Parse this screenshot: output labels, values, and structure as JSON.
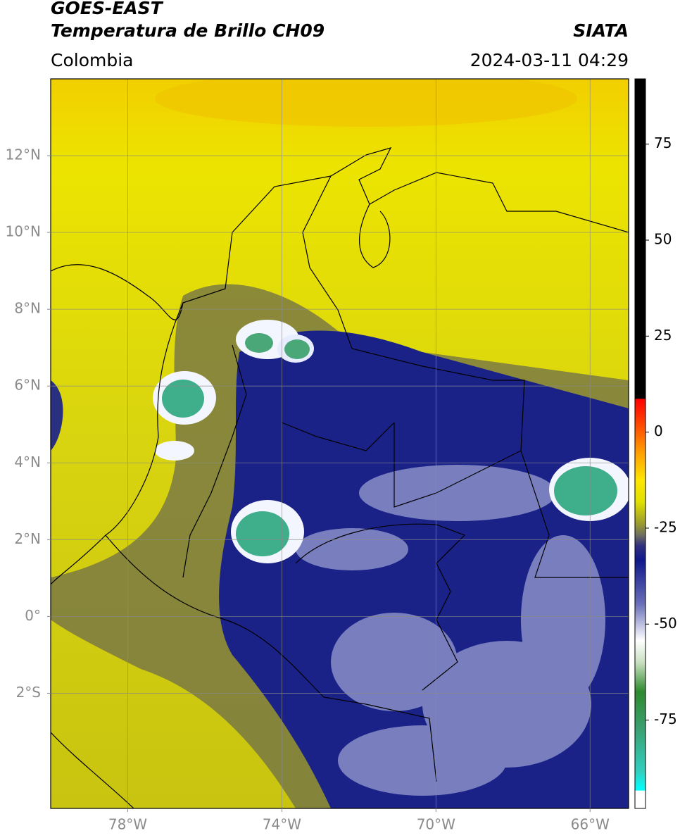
{
  "header": {
    "title": "GOES-EAST",
    "subtitle": "Temperatura de Brillo CH09",
    "source": "SIATA",
    "region": "Colombia",
    "timestamp": "2024-03-11 04:29"
  },
  "map": {
    "lon_range": [
      -80,
      -65
    ],
    "lat_range": [
      -5,
      14
    ],
    "lon_ticks": [
      {
        "value": -78,
        "label": "78°W"
      },
      {
        "value": -74,
        "label": "74°W"
      },
      {
        "value": -70,
        "label": "70°W"
      },
      {
        "value": -66,
        "label": "66°W"
      }
    ],
    "lat_ticks": [
      {
        "value": 12,
        "label": "12°N"
      },
      {
        "value": 10,
        "label": "10°N"
      },
      {
        "value": 8,
        "label": "8°N"
      },
      {
        "value": 6,
        "label": "6°N"
      },
      {
        "value": 4,
        "label": "4°N"
      },
      {
        "value": 2,
        "label": "2°N"
      },
      {
        "value": 0,
        "label": "0°"
      },
      {
        "value": -2,
        "label": "2°S"
      }
    ]
  },
  "colorbar": {
    "range": [
      -98,
      92
    ],
    "ticks": [
      75,
      50,
      25,
      0,
      -25,
      -50,
      -75
    ]
  }
}
